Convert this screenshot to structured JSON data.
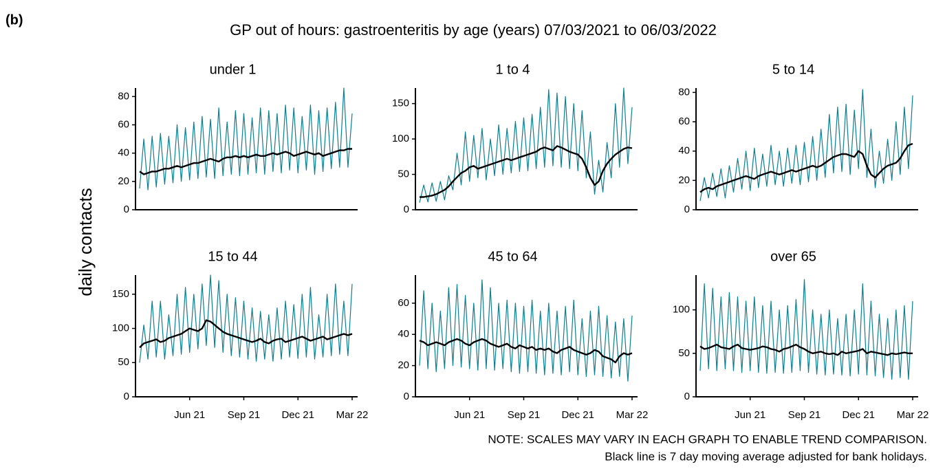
{
  "panel_label": "(b)",
  "title": "GP out of hours: gastroenteritis by age (years) 07/03/2021 to 06/03/2022",
  "y_label": "daily contacts",
  "notes": [
    "NOTE: SCALES MAY VARY IN EACH GRAPH TO ENABLE TREND COMPARISON.",
    "Black line is 7 day moving average adjusted for bank holidays."
  ],
  "chart_data": [
    {
      "type": "line",
      "title": "under 1",
      "ylim": [
        0,
        86
      ],
      "yticks": [
        0,
        20,
        40,
        60,
        80
      ],
      "series": [
        {
          "color": "#0a7f92",
          "values": [
            15,
            50,
            14,
            52,
            16,
            54,
            18,
            52,
            19,
            60,
            20,
            58,
            21,
            62,
            22,
            66,
            23,
            64,
            22,
            72,
            24,
            62,
            25,
            70,
            24,
            68,
            25,
            65,
            26,
            72,
            25,
            70,
            27,
            68,
            26,
            74,
            28,
            72,
            26,
            66,
            28,
            74,
            25,
            70,
            27,
            72,
            29,
            76,
            30,
            86,
            30,
            68
          ]
        },
        {
          "color": "#000000",
          "values": [
            27,
            25,
            26,
            27,
            27,
            28,
            29,
            29,
            30,
            31,
            30,
            31,
            32,
            33,
            33,
            34,
            35,
            36,
            35,
            34,
            36,
            37,
            37,
            38,
            37,
            38,
            37,
            38,
            39,
            38,
            38,
            39,
            40,
            39,
            40,
            41,
            40,
            38,
            39,
            40,
            41,
            40,
            39,
            40,
            38,
            39,
            40,
            41,
            42,
            42,
            43,
            43
          ]
        }
      ]
    },
    {
      "type": "line",
      "title": "1 to 4",
      "ylim": [
        0,
        172
      ],
      "yticks": [
        0,
        50,
        100,
        150
      ],
      "series": [
        {
          "color": "#0a7f92",
          "values": [
            10,
            35,
            11,
            38,
            12,
            40,
            14,
            48,
            28,
            80,
            35,
            110,
            40,
            105,
            45,
            115,
            42,
            100,
            48,
            120,
            50,
            115,
            52,
            125,
            54,
            130,
            55,
            135,
            58,
            145,
            60,
            170,
            62,
            165,
            60,
            160,
            58,
            150,
            55,
            140,
            45,
            110,
            22,
            70,
            25,
            95,
            45,
            150,
            60,
            172,
            65,
            145
          ]
        },
        {
          "color": "#000000",
          "values": [
            18,
            18,
            19,
            20,
            22,
            25,
            28,
            33,
            40,
            46,
            52,
            55,
            60,
            62,
            58,
            60,
            62,
            64,
            66,
            68,
            70,
            72,
            70,
            72,
            74,
            76,
            78,
            80,
            82,
            86,
            88,
            86,
            84,
            90,
            88,
            85,
            82,
            80,
            78,
            72,
            60,
            45,
            35,
            40,
            55,
            65,
            72,
            78,
            82,
            86,
            88,
            87
          ]
        }
      ]
    },
    {
      "type": "line",
      "title": "5 to 14",
      "ylim": [
        0,
        83
      ],
      "yticks": [
        0,
        20,
        40,
        60,
        80
      ],
      "series": [
        {
          "color": "#0a7f92",
          "values": [
            6,
            22,
            8,
            25,
            9,
            28,
            8,
            30,
            12,
            35,
            14,
            40,
            13,
            42,
            15,
            38,
            16,
            44,
            17,
            40,
            16,
            42,
            18,
            44,
            17,
            46,
            19,
            50,
            20,
            55,
            22,
            65,
            25,
            70,
            26,
            72,
            24,
            68,
            28,
            82,
            22,
            55,
            15,
            40,
            18,
            48,
            20,
            60,
            24,
            70,
            28,
            78
          ]
        },
        {
          "color": "#000000",
          "values": [
            12,
            14,
            15,
            14,
            16,
            17,
            18,
            19,
            20,
            21,
            22,
            23,
            22,
            21,
            23,
            24,
            25,
            26,
            25,
            24,
            25,
            26,
            27,
            26,
            27,
            28,
            29,
            30,
            29,
            30,
            32,
            34,
            36,
            37,
            38,
            38,
            37,
            36,
            40,
            38,
            30,
            24,
            22,
            25,
            28,
            30,
            31,
            32,
            35,
            40,
            44,
            45
          ]
        }
      ]
    },
    {
      "type": "line",
      "title": "15 to 44",
      "ylim": [
        0,
        178
      ],
      "yticks": [
        0,
        50,
        100,
        150
      ],
      "categories": [
        null,
        null,
        null,
        null,
        null,
        null,
        null,
        null,
        null,
        null,
        null,
        null,
        "Jun 21",
        null,
        null,
        null,
        null,
        null,
        null,
        null,
        null,
        null,
        null,
        null,
        null,
        "Sep 21",
        null,
        null,
        null,
        null,
        null,
        null,
        null,
        null,
        null,
        null,
        null,
        null,
        "Dec 21",
        null,
        null,
        null,
        null,
        null,
        null,
        null,
        null,
        null,
        null,
        null,
        null,
        "Mar 22"
      ],
      "series": [
        {
          "color": "#0a7f92",
          "values": [
            50,
            105,
            55,
            140,
            58,
            140,
            55,
            120,
            60,
            150,
            62,
            160,
            65,
            150,
            70,
            165,
            75,
            178,
            72,
            170,
            65,
            150,
            60,
            145,
            58,
            140,
            55,
            130,
            52,
            125,
            55,
            120,
            52,
            130,
            55,
            140,
            58,
            135,
            56,
            150,
            58,
            160,
            55,
            120,
            58,
            150,
            60,
            165,
            62,
            140,
            60,
            165
          ]
        },
        {
          "color": "#000000",
          "values": [
            72,
            78,
            80,
            82,
            84,
            80,
            82,
            86,
            88,
            90,
            92,
            96,
            100,
            98,
            96,
            100,
            112,
            110,
            105,
            100,
            95,
            92,
            90,
            88,
            86,
            84,
            82,
            80,
            82,
            85,
            80,
            78,
            82,
            84,
            85,
            80,
            82,
            84,
            86,
            88,
            85,
            82,
            84,
            86,
            88,
            84,
            86,
            88,
            90,
            92,
            90,
            92
          ]
        }
      ]
    },
    {
      "type": "line",
      "title": "45 to 64",
      "ylim": [
        0,
        78
      ],
      "yticks": [
        0,
        20,
        40,
        60
      ],
      "categories": [
        null,
        null,
        null,
        null,
        null,
        null,
        null,
        null,
        null,
        null,
        null,
        null,
        "Jun 21",
        null,
        null,
        null,
        null,
        null,
        null,
        null,
        null,
        null,
        null,
        null,
        null,
        "Sep 21",
        null,
        null,
        null,
        null,
        null,
        null,
        null,
        null,
        null,
        null,
        null,
        null,
        "Dec 21",
        null,
        null,
        null,
        null,
        null,
        null,
        null,
        null,
        null,
        null,
        null,
        null,
        "Mar 22"
      ],
      "series": [
        {
          "color": "#0a7f92",
          "values": [
            20,
            68,
            18,
            60,
            16,
            55,
            18,
            70,
            20,
            72,
            19,
            65,
            18,
            60,
            17,
            75,
            18,
            70,
            17,
            60,
            18,
            62,
            16,
            60,
            15,
            58,
            16,
            62,
            15,
            55,
            14,
            60,
            15,
            55,
            14,
            58,
            16,
            62,
            14,
            50,
            13,
            55,
            14,
            58,
            13,
            52,
            12,
            48,
            13,
            50,
            10,
            52
          ]
        },
        {
          "color": "#000000",
          "values": [
            36,
            35,
            33,
            34,
            35,
            34,
            33,
            35,
            36,
            37,
            36,
            34,
            33,
            35,
            36,
            37,
            36,
            34,
            33,
            32,
            33,
            34,
            32,
            31,
            33,
            32,
            31,
            32,
            30,
            31,
            30,
            31,
            29,
            28,
            30,
            31,
            32,
            30,
            29,
            28,
            27,
            28,
            30,
            29,
            26,
            25,
            24,
            22,
            26,
            28,
            27,
            28
          ]
        }
      ]
    },
    {
      "type": "line",
      "title": "over 65",
      "ylim": [
        0,
        140
      ],
      "yticks": [
        0,
        50,
        100
      ],
      "categories": [
        null,
        null,
        null,
        null,
        null,
        null,
        null,
        null,
        null,
        null,
        null,
        null,
        "Jun 21",
        null,
        null,
        null,
        null,
        null,
        null,
        null,
        null,
        null,
        null,
        null,
        null,
        "Sep 21",
        null,
        null,
        null,
        null,
        null,
        null,
        null,
        null,
        null,
        null,
        null,
        null,
        "Dec 21",
        null,
        null,
        null,
        null,
        null,
        null,
        null,
        null,
        null,
        null,
        null,
        null,
        "Mar 22"
      ],
      "series": [
        {
          "color": "#0a7f92",
          "values": [
            30,
            130,
            32,
            125,
            30,
            115,
            32,
            120,
            30,
            115,
            28,
            110,
            30,
            115,
            28,
            105,
            27,
            110,
            28,
            100,
            27,
            105,
            28,
            112,
            30,
            135,
            28,
            100,
            26,
            95,
            25,
            100,
            26,
            90,
            25,
            95,
            24,
            100,
            26,
            130,
            25,
            110,
            24,
            95,
            22,
            90,
            20,
            100,
            22,
            105,
            20,
            110
          ]
        },
        {
          "color": "#000000",
          "values": [
            58,
            55,
            56,
            58,
            60,
            57,
            56,
            55,
            58,
            60,
            56,
            55,
            54,
            55,
            56,
            58,
            57,
            55,
            54,
            52,
            55,
            56,
            58,
            60,
            57,
            55,
            52,
            50,
            51,
            52,
            50,
            49,
            50,
            48,
            52,
            50,
            51,
            52,
            53,
            55,
            50,
            52,
            51,
            50,
            49,
            48,
            50,
            49,
            50,
            51,
            50,
            50
          ]
        }
      ]
    }
  ]
}
